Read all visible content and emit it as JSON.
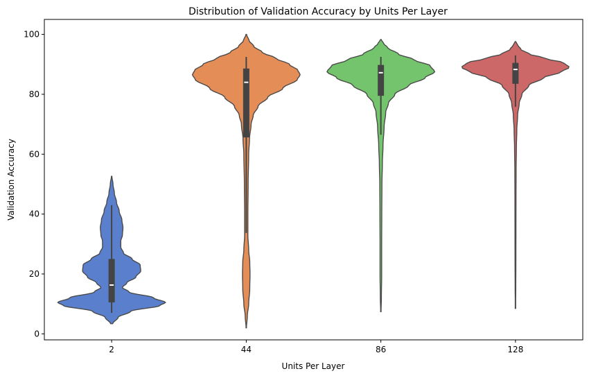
{
  "chart_data": {
    "type": "violin",
    "title": "Distribution of Validation Accuracy by Units Per Layer",
    "xlabel": "Units Per Layer",
    "ylabel": "Validation Accuracy",
    "categories": [
      "2",
      "44",
      "86",
      "128"
    ],
    "ylim": [
      -2,
      105
    ],
    "yticks": [
      0,
      20,
      40,
      60,
      80,
      100
    ],
    "grid": false,
    "legend": "none",
    "colors": [
      "#5a7fcc",
      "#e48d57",
      "#73c46c",
      "#cd6868"
    ],
    "outline_color": "#4a4a4a",
    "violins": [
      {
        "category": "2",
        "range": [
          3.4,
          52.6
        ],
        "box": {
          "q1": 10.5,
          "median": 16.3,
          "q3": 25.0,
          "whisker_low": 7.0,
          "whisker_high": 43.0
        },
        "profile": [
          [
            3.4,
            0.02
          ],
          [
            5.5,
            0.12
          ],
          [
            7.5,
            0.35
          ],
          [
            9.5,
            0.9
          ],
          [
            10.5,
            1.0
          ],
          [
            12.0,
            0.78
          ],
          [
            14.0,
            0.32
          ],
          [
            15.5,
            0.2
          ],
          [
            17.0,
            0.28
          ],
          [
            19.0,
            0.45
          ],
          [
            21.0,
            0.54
          ],
          [
            23.0,
            0.53
          ],
          [
            25.0,
            0.38
          ],
          [
            27.0,
            0.22
          ],
          [
            29.0,
            0.17
          ],
          [
            31.0,
            0.17
          ],
          [
            33.0,
            0.2
          ],
          [
            35.5,
            0.21
          ],
          [
            38.0,
            0.19
          ],
          [
            41.0,
            0.14
          ],
          [
            44.0,
            0.09
          ],
          [
            47.0,
            0.05
          ],
          [
            50.0,
            0.025
          ],
          [
            52.6,
            0.005
          ]
        ]
      },
      {
        "category": "44",
        "range": [
          2.0,
          100.0
        ],
        "box": {
          "q1": 65.6,
          "median": 84.0,
          "q3": 88.6,
          "whisker_low": 33.7,
          "whisker_high": 92.5
        },
        "profile": [
          [
            2.0,
            0.003
          ],
          [
            6.0,
            0.02
          ],
          [
            10.0,
            0.045
          ],
          [
            15.0,
            0.065
          ],
          [
            20.0,
            0.07
          ],
          [
            24.0,
            0.065
          ],
          [
            28.0,
            0.045
          ],
          [
            33.0,
            0.03
          ],
          [
            40.0,
            0.03
          ],
          [
            50.0,
            0.035
          ],
          [
            60.0,
            0.045
          ],
          [
            65.0,
            0.06
          ],
          [
            70.0,
            0.09
          ],
          [
            73.0,
            0.13
          ],
          [
            76.0,
            0.22
          ],
          [
            79.0,
            0.4
          ],
          [
            82.0,
            0.68
          ],
          [
            85.0,
            0.95
          ],
          [
            86.5,
            1.0
          ],
          [
            88.0,
            0.96
          ],
          [
            90.0,
            0.8
          ],
          [
            92.0,
            0.55
          ],
          [
            94.0,
            0.3
          ],
          [
            96.0,
            0.14
          ],
          [
            98.0,
            0.05
          ],
          [
            100.0,
            0.005
          ]
        ]
      },
      {
        "category": "86",
        "range": [
          7.4,
          98.3
        ],
        "box": {
          "q1": 79.5,
          "median": 87.2,
          "q3": 89.8,
          "whisker_low": 66.5,
          "whisker_high": 92.5
        },
        "profile": [
          [
            7.4,
            0.003
          ],
          [
            12.0,
            0.01
          ],
          [
            20.0,
            0.015
          ],
          [
            30.0,
            0.015
          ],
          [
            40.0,
            0.017
          ],
          [
            50.0,
            0.02
          ],
          [
            57.0,
            0.028
          ],
          [
            63.0,
            0.04
          ],
          [
            69.0,
            0.06
          ],
          [
            74.0,
            0.09
          ],
          [
            77.0,
            0.14
          ],
          [
            80.0,
            0.26
          ],
          [
            83.0,
            0.52
          ],
          [
            85.5,
            0.82
          ],
          [
            87.5,
            1.0
          ],
          [
            89.5,
            0.92
          ],
          [
            91.5,
            0.62
          ],
          [
            93.5,
            0.32
          ],
          [
            95.5,
            0.13
          ],
          [
            97.0,
            0.05
          ],
          [
            98.3,
            0.005
          ]
        ]
      },
      {
        "category": "128",
        "range": [
          8.5,
          97.6
        ],
        "box": {
          "q1": 83.5,
          "median": 88.3,
          "q3": 90.5,
          "whisker_low": 75.8,
          "whisker_high": 93.0
        },
        "profile": [
          [
            8.5,
            0.002
          ],
          [
            15.0,
            0.006
          ],
          [
            25.0,
            0.008
          ],
          [
            35.0,
            0.009
          ],
          [
            45.0,
            0.01
          ],
          [
            55.0,
            0.012
          ],
          [
            62.0,
            0.017
          ],
          [
            68.0,
            0.025
          ],
          [
            73.0,
            0.04
          ],
          [
            77.0,
            0.07
          ],
          [
            80.0,
            0.12
          ],
          [
            83.0,
            0.25
          ],
          [
            85.5,
            0.52
          ],
          [
            87.5,
            0.85
          ],
          [
            89.0,
            1.0
          ],
          [
            90.5,
            0.9
          ],
          [
            92.0,
            0.55
          ],
          [
            93.5,
            0.25
          ],
          [
            95.0,
            0.1
          ],
          [
            96.5,
            0.04
          ],
          [
            97.6,
            0.005
          ]
        ]
      }
    ]
  }
}
